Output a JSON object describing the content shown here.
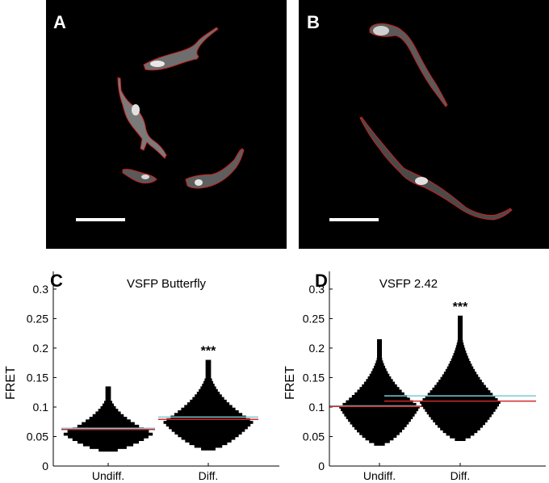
{
  "panels": {
    "a_label": "A",
    "b_label": "B",
    "c_label": "C",
    "d_label": "D"
  },
  "colors": {
    "outline": "#c81e1e",
    "mean_line": "#7ec8d8",
    "median_line": "#d22828",
    "micrograph_bg": "#000000",
    "scale_bar": "#ffffff"
  },
  "chart_data": [
    {
      "type": "histogram-violin",
      "panel": "C",
      "title": "VSFP Butterfly",
      "ylabel": "FRET",
      "ylim": [
        0,
        0.33
      ],
      "yticks": [
        0,
        0.05,
        0.1,
        0.15,
        0.2,
        0.25,
        0.3
      ],
      "ytick_labels": [
        "0",
        "0.05",
        "0.1",
        "0.15",
        "0.2",
        "0.25",
        "0.3"
      ],
      "categories": [
        "Undiff.",
        "Diff."
      ],
      "significance": [
        "",
        "***"
      ],
      "distributions": [
        {
          "name": "Undiff.",
          "range": [
            0.025,
            0.135
          ],
          "peak": 0.055,
          "mean": 0.064,
          "median": 0.062
        },
        {
          "name": "Diff.",
          "range": [
            0.027,
            0.18
          ],
          "peak": 0.075,
          "mean": 0.083,
          "median": 0.079
        }
      ]
    },
    {
      "type": "histogram-violin",
      "panel": "D",
      "title": "VSFP 2.42",
      "ylabel": "FRET",
      "ylim": [
        0,
        0.33
      ],
      "yticks": [
        0,
        0.05,
        0.1,
        0.15,
        0.2,
        0.25,
        0.3
      ],
      "ytick_labels": [
        "0",
        "0.05",
        "0.1",
        "0.15",
        "0.2",
        "0.25",
        "0.3"
      ],
      "categories": [
        "Undiff.",
        "Diff."
      ],
      "significance": [
        "",
        "***"
      ],
      "distributions": [
        {
          "name": "Undiff.",
          "range": [
            0.035,
            0.215
          ],
          "peak": 0.1,
          "mean": 0.102,
          "median": 0.101
        },
        {
          "name": "Diff.",
          "range": [
            0.043,
            0.255
          ],
          "peak": 0.108,
          "mean": 0.119,
          "median": 0.11
        }
      ]
    }
  ]
}
